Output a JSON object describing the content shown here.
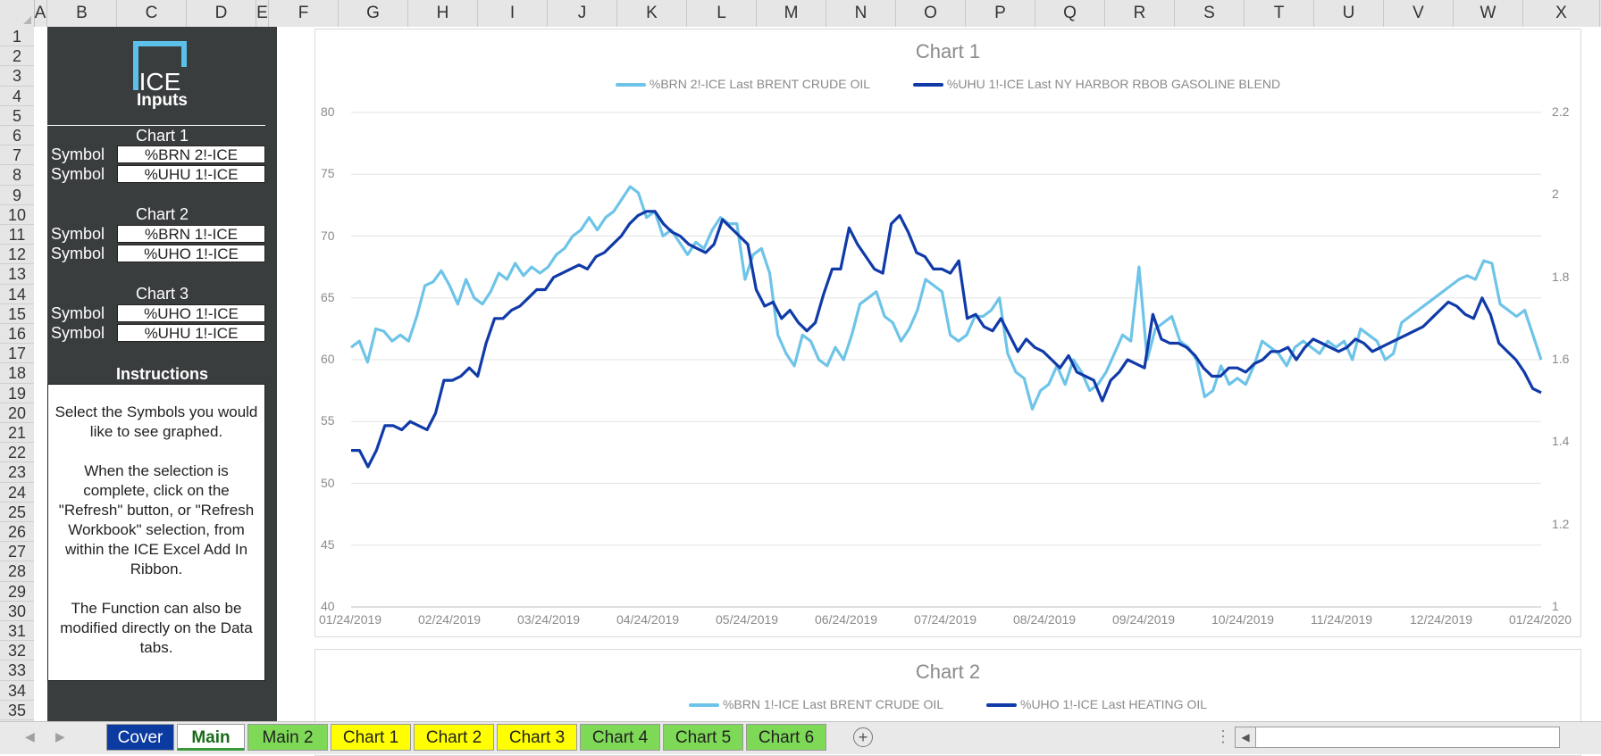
{
  "columns": [
    "A",
    "B",
    "C",
    "D",
    "E",
    "F",
    "G",
    "H",
    "I",
    "J",
    "K",
    "L",
    "M",
    "N",
    "O",
    "P",
    "Q",
    "R",
    "S",
    "T",
    "U",
    "V",
    "W",
    "X"
  ],
  "rows": [
    "1",
    "2",
    "3",
    "4",
    "5",
    "6",
    "7",
    "8",
    "9",
    "10",
    "11",
    "12",
    "13",
    "14",
    "15",
    "16",
    "17",
    "18",
    "19",
    "20",
    "21",
    "22",
    "23",
    "24",
    "25",
    "26",
    "27",
    "28",
    "29",
    "30",
    "31",
    "32",
    "33",
    "34",
    "35"
  ],
  "panel": {
    "logo_text": "ICE",
    "inputs_title": "Inputs",
    "chart1_label": "Chart 1",
    "chart2_label": "Chart 2",
    "chart3_label": "Chart 3",
    "symbol_label": "Symbol",
    "chart1_symbols": [
      "%BRN 2!-ICE",
      "%UHU 1!-ICE"
    ],
    "chart2_symbols": [
      "%BRN 1!-ICE",
      "%UHO 1!-ICE"
    ],
    "chart3_symbols": [
      "%UHO 1!-ICE",
      "%UHU 1!-ICE"
    ],
    "instructions_title": "Instructions",
    "instructions_p1": "Select the Symbols you would like to see graphed.",
    "instructions_p2": "When the selection is complete, click on the \"Refresh\" button, or \"Refresh Workbook\" selection, from within the ICE Excel Add In Ribbon.",
    "instructions_p3": "The Function can also be modified directly on the Data tabs."
  },
  "chart_data": [
    {
      "type": "line",
      "title": "Chart 1",
      "legend_position": "top",
      "grid": true,
      "x_ticks": [
        "01/24/2019",
        "02/24/2019",
        "03/24/2019",
        "04/24/2019",
        "05/24/2019",
        "06/24/2019",
        "07/24/2019",
        "08/24/2019",
        "09/24/2019",
        "10/24/2019",
        "11/24/2019",
        "12/24/2019",
        "01/24/2020"
      ],
      "y_left_ticks": [
        "80",
        "75",
        "70",
        "65",
        "60",
        "55",
        "50",
        "45",
        "40"
      ],
      "y_right_ticks": [
        "2.2",
        "2",
        "1.8",
        "1.6",
        "1.4",
        "1.2",
        "1"
      ],
      "ylim_left": [
        40,
        80
      ],
      "ylim_right": [
        1,
        2.2
      ],
      "series": [
        {
          "name": "%BRN 2!-ICE Last BRENT CRUDE OIL",
          "axis": "left",
          "color": "#6ec4e8",
          "values": [
            61.0,
            61.5,
            59.8,
            62.5,
            62.3,
            61.5,
            62.0,
            61.5,
            63.5,
            66.0,
            66.3,
            67.2,
            66.0,
            64.5,
            66.5,
            65.0,
            64.5,
            65.5,
            67.0,
            66.5,
            67.8,
            66.8,
            67.5,
            67.0,
            67.5,
            68.5,
            69.0,
            70.0,
            70.5,
            71.5,
            70.5,
            71.5,
            72.0,
            73.0,
            74.0,
            73.5,
            71.5,
            72.0,
            70.0,
            70.5,
            69.5,
            68.5,
            69.5,
            69.0,
            70.5,
            71.5,
            71.0,
            71.0,
            66.5,
            68.5,
            69.0,
            67.0,
            62.0,
            60.5,
            59.5,
            62.0,
            61.5,
            60.0,
            59.5,
            61.0,
            60.0,
            62.0,
            64.5,
            65.0,
            65.5,
            63.5,
            63.0,
            61.5,
            62.5,
            64.0,
            66.5,
            66.0,
            65.5,
            62.0,
            61.5,
            62.0,
            63.5,
            63.5,
            64.0,
            65.0,
            60.5,
            59.0,
            58.5,
            56.0,
            57.5,
            58.0,
            59.5,
            58.0,
            60.0,
            59.0,
            57.5,
            58.0,
            59.0,
            60.5,
            62.0,
            61.5,
            67.5,
            60.0,
            62.5,
            63.0,
            63.5,
            61.5,
            61.0,
            60.0,
            57.0,
            57.5,
            59.5,
            58.0,
            58.5,
            58.0,
            59.5,
            61.5,
            61.0,
            60.5,
            59.5,
            61.0,
            61.5,
            61.0,
            60.5,
            61.5,
            61.0,
            61.5,
            60.0,
            62.5,
            62.0,
            61.5,
            60.0,
            60.5,
            63.0,
            63.5,
            64.0,
            64.5,
            65.0,
            65.5,
            66.0,
            66.5,
            66.8,
            66.5,
            68.0,
            67.8,
            64.5,
            64.0,
            63.5,
            64.0,
            62.0,
            60.0
          ]
        },
        {
          "name": "%UHU 1!-ICE Last NY HARBOR RBOB GASOLINE BLEND",
          "axis": "right",
          "color": "#0f3aa8",
          "values": [
            1.38,
            1.38,
            1.34,
            1.38,
            1.44,
            1.44,
            1.43,
            1.45,
            1.44,
            1.43,
            1.47,
            1.55,
            1.55,
            1.56,
            1.58,
            1.56,
            1.64,
            1.7,
            1.7,
            1.72,
            1.73,
            1.75,
            1.77,
            1.77,
            1.8,
            1.81,
            1.82,
            1.83,
            1.82,
            1.85,
            1.86,
            1.88,
            1.9,
            1.93,
            1.95,
            1.96,
            1.96,
            1.93,
            1.91,
            1.9,
            1.88,
            1.87,
            1.86,
            1.88,
            1.94,
            1.92,
            1.9,
            1.88,
            1.77,
            1.73,
            1.74,
            1.7,
            1.72,
            1.69,
            1.67,
            1.69,
            1.76,
            1.82,
            1.82,
            1.92,
            1.88,
            1.85,
            1.82,
            1.81,
            1.93,
            1.95,
            1.91,
            1.86,
            1.85,
            1.82,
            1.82,
            1.81,
            1.84,
            1.7,
            1.71,
            1.68,
            1.67,
            1.7,
            1.66,
            1.62,
            1.65,
            1.63,
            1.62,
            1.6,
            1.58,
            1.61,
            1.57,
            1.56,
            1.55,
            1.5,
            1.55,
            1.57,
            1.6,
            1.59,
            1.58,
            1.71,
            1.65,
            1.64,
            1.64,
            1.63,
            1.61,
            1.58,
            1.56,
            1.56,
            1.58,
            1.58,
            1.57,
            1.59,
            1.6,
            1.62,
            1.62,
            1.63,
            1.6,
            1.63,
            1.65,
            1.64,
            1.63,
            1.62,
            1.63,
            1.65,
            1.64,
            1.62,
            1.63,
            1.64,
            1.65,
            1.66,
            1.67,
            1.68,
            1.7,
            1.72,
            1.74,
            1.73,
            1.71,
            1.7,
            1.75,
            1.71,
            1.64,
            1.62,
            1.6,
            1.57,
            1.53,
            1.52
          ]
        }
      ]
    },
    {
      "type": "line",
      "title": "Chart 2",
      "legend_position": "top",
      "series": [
        {
          "name": "%BRN 1!-ICE Last BRENT CRUDE OIL",
          "color": "#6ec4e8"
        },
        {
          "name": "%UHO 1!-ICE Last HEATING OIL",
          "color": "#0f3aa8"
        }
      ]
    }
  ],
  "tabs": [
    {
      "label": "Cover",
      "color": "#0b3aa0",
      "text_color": "#ffffff"
    },
    {
      "label": "Main",
      "color": "#ffffff",
      "text_color": "#1a6b1a",
      "active": true
    },
    {
      "label": "Main 2",
      "color": "#7ed957",
      "text_color": "#222222"
    },
    {
      "label": "Chart 1",
      "color": "#ffff00",
      "text_color": "#222222"
    },
    {
      "label": "Chart 2",
      "color": "#ffff00",
      "text_color": "#222222"
    },
    {
      "label": "Chart 3",
      "color": "#ffff00",
      "text_color": "#222222"
    },
    {
      "label": "Chart 4",
      "color": "#7ed957",
      "text_color": "#222222"
    },
    {
      "label": "Chart 5",
      "color": "#7ed957",
      "text_color": "#222222"
    },
    {
      "label": "Chart 6",
      "color": "#7ed957",
      "text_color": "#222222"
    }
  ],
  "icons": {
    "add_sheet": "plus-circle-icon",
    "prev_sheet": "caret-left-icon",
    "next_sheet": "caret-right-icon",
    "more": "vertical-dots-icon",
    "scroll_left": "scroll-left-icon"
  }
}
